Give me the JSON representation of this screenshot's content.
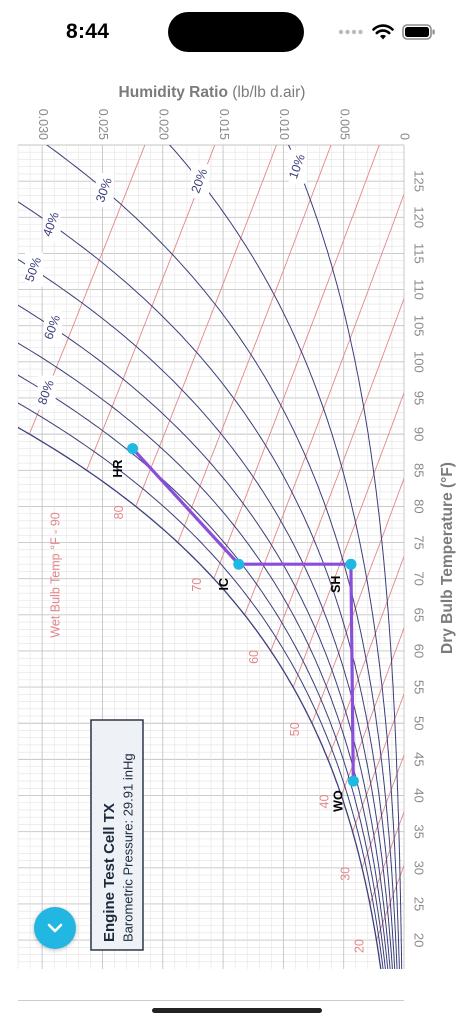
{
  "status_bar": {
    "time": "8:44",
    "icons": [
      "signal-icon",
      "wifi-icon",
      "battery-icon"
    ]
  },
  "chart_data": {
    "type": "psychrometric",
    "orientation": "rotated-90-clockwise",
    "x_axis": {
      "label": "Dry Bulb Temperature (°F)",
      "range": [
        16,
        130
      ],
      "ticks": [
        20,
        25,
        30,
        35,
        40,
        45,
        50,
        55,
        60,
        65,
        70,
        75,
        80,
        85,
        90,
        95,
        100,
        105,
        110,
        115,
        120,
        125
      ]
    },
    "y_axis": {
      "label": "Humidity Ratio",
      "label_unit": "(lb/lb d.air)",
      "range": [
        0,
        0.032
      ],
      "ticks": [
        "0",
        "0.005",
        "0.010",
        "0.015",
        "0.020",
        "0.025",
        "0.030"
      ]
    },
    "rh_curves": [
      {
        "rh": 10,
        "label": "10%"
      },
      {
        "rh": 20,
        "label": "20%"
      },
      {
        "rh": 30,
        "label": "30%"
      },
      {
        "rh": 40,
        "label": "40%"
      },
      {
        "rh": 50,
        "label": "50%"
      },
      {
        "rh": 60,
        "label": "60%"
      },
      {
        "rh": 70,
        "label": ""
      },
      {
        "rh": 80,
        "label": "80%"
      },
      {
        "rh": 90,
        "label": ""
      },
      {
        "rh": 100,
        "label": ""
      }
    ],
    "wet_bulb_lines": [
      {
        "t": 20,
        "label": "20"
      },
      {
        "t": 25,
        "label": ""
      },
      {
        "t": 30,
        "label": "30"
      },
      {
        "t": 35,
        "label": ""
      },
      {
        "t": 40,
        "label": "40"
      },
      {
        "t": 45,
        "label": ""
      },
      {
        "t": 50,
        "label": "50"
      },
      {
        "t": 55,
        "label": ""
      },
      {
        "t": 60,
        "label": "60"
      },
      {
        "t": 65,
        "label": ""
      },
      {
        "t": 70,
        "label": "70"
      },
      {
        "t": 75,
        "label": ""
      },
      {
        "t": 80,
        "label": "80"
      },
      {
        "t": 85,
        "label": ""
      },
      {
        "t": 90,
        "label": "Wet Bulb Temp °F - 90"
      }
    ],
    "process_points": [
      {
        "name": "WO",
        "tdb": 42,
        "w": 0.0042
      },
      {
        "name": "SH",
        "tdb": 72,
        "w": 0.0044
      },
      {
        "name": "IC",
        "tdb": 72,
        "w": 0.0137
      },
      {
        "name": "HR",
        "tdb": 88,
        "w": 0.0225
      }
    ],
    "process_path": [
      "WO",
      "SH",
      "IC",
      "HR"
    ],
    "colors": {
      "rh": "#3b3f7a",
      "wet_bulb": "#e3878a",
      "grid": "#cfcfcf",
      "process": "#8a4fd8",
      "point": "#1db9e0",
      "axis_label": "#8a8a8a"
    }
  },
  "info_box": {
    "title": "Engine Test Cell TX",
    "subtitle": "Barometric Pressure: 29.91 inHg"
  }
}
